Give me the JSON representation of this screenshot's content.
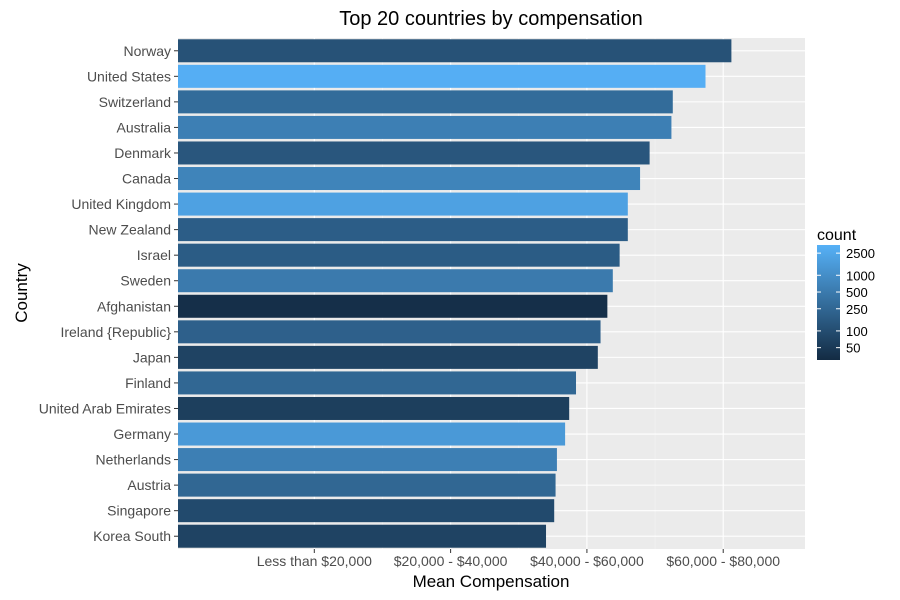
{
  "chart_data": {
    "type": "bar",
    "orientation": "horizontal",
    "title": "Top 20 countries by compensation",
    "xlabel": "Mean Compensation",
    "ylabel": "Country",
    "x_ticks": [
      {
        "label": "Less than $20,000",
        "value": 1
      },
      {
        "label": "$20,000 - $40,000",
        "value": 2
      },
      {
        "label": "$40,000 - $60,000",
        "value": 3
      },
      {
        "label": "$60,000 - $80,000",
        "value": 4
      }
    ],
    "xlim": [
      0,
      4.6
    ],
    "grid": true,
    "legend": {
      "title": "count",
      "placement": "right",
      "scale": "log",
      "range": [
        30,
        3500
      ],
      "labels": [
        "2500",
        "1000",
        "500",
        "250",
        "100",
        "50"
      ],
      "breaks": [
        2500,
        1000,
        500,
        250,
        100,
        50
      ],
      "colors": {
        "low": "#132B43",
        "high": "#56B1F7"
      }
    },
    "categories": [
      "Norway",
      "United States",
      "Switzerland",
      "Australia",
      "Denmark",
      "Canada",
      "United Kingdom",
      "New Zealand",
      "Israel",
      "Sweden",
      "Afghanistan",
      "Ireland {Republic}",
      "Japan",
      "Finland",
      "United Arab Emirates",
      "Germany",
      "Netherlands",
      "Austria",
      "Singapore",
      "Korea South"
    ],
    "values": [
      4.06,
      3.87,
      3.63,
      3.62,
      3.46,
      3.39,
      3.3,
      3.3,
      3.24,
      3.19,
      3.15,
      3.1,
      3.08,
      2.92,
      2.87,
      2.84,
      2.78,
      2.77,
      2.76,
      2.7
    ],
    "count": [
      120,
      3200,
      300,
      600,
      140,
      700,
      2000,
      180,
      170,
      500,
      35,
      200,
      70,
      250,
      60,
      1500,
      600,
      250,
      90,
      70
    ]
  },
  "colors": {
    "panel": "#EBEBEB",
    "grid_major": "#FFFFFF",
    "grid_minor": "#F5F5F5"
  }
}
